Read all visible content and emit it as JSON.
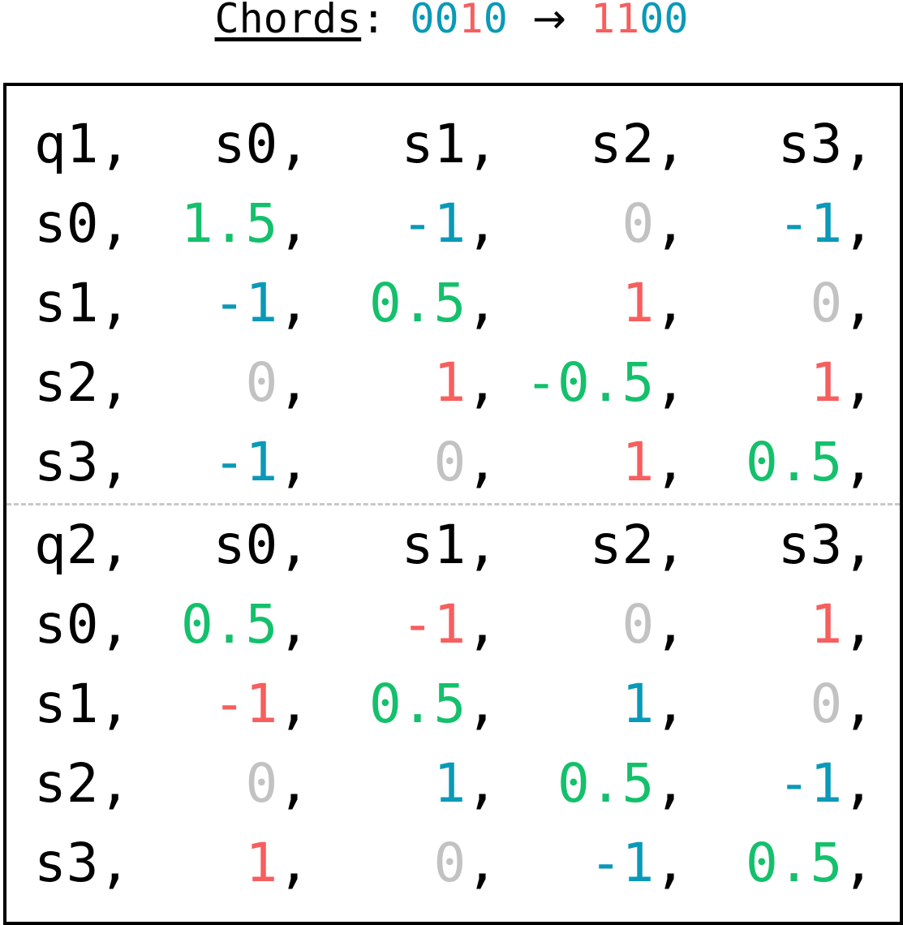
{
  "title": {
    "label": "Chords",
    "separator": ":",
    "from_bits": [
      {
        "char": "0",
        "color": "blue"
      },
      {
        "char": "0",
        "color": "blue"
      },
      {
        "char": "1",
        "color": "red"
      },
      {
        "char": "0",
        "color": "blue"
      }
    ],
    "arrow": "→",
    "to_bits": [
      {
        "char": "1",
        "color": "red"
      },
      {
        "char": "1",
        "color": "red"
      },
      {
        "char": "0",
        "color": "blue"
      },
      {
        "char": "0",
        "color": "blue"
      }
    ]
  },
  "colors": {
    "blue": "#0a99b8",
    "red": "#f75e5e",
    "green": "#14c06b",
    "gray": "#c2c2c2",
    "black": "#000000"
  },
  "blocks": [
    {
      "header": [
        "q1",
        "s0",
        "s1",
        "s2",
        "s3"
      ],
      "rows": [
        {
          "label": "s0",
          "cells": [
            {
              "v": "1.5",
              "c": "green"
            },
            {
              "v": "-1",
              "c": "blue"
            },
            {
              "v": "0",
              "c": "gray"
            },
            {
              "v": "-1",
              "c": "blue"
            }
          ]
        },
        {
          "label": "s1",
          "cells": [
            {
              "v": "-1",
              "c": "blue"
            },
            {
              "v": "0.5",
              "c": "green"
            },
            {
              "v": "1",
              "c": "red"
            },
            {
              "v": "0",
              "c": "gray"
            }
          ]
        },
        {
          "label": "s2",
          "cells": [
            {
              "v": "0",
              "c": "gray"
            },
            {
              "v": "1",
              "c": "red"
            },
            {
              "v": "-0.5",
              "c": "green"
            },
            {
              "v": "1",
              "c": "red"
            }
          ]
        },
        {
          "label": "s3",
          "cells": [
            {
              "v": "-1",
              "c": "blue"
            },
            {
              "v": "0",
              "c": "gray"
            },
            {
              "v": "1",
              "c": "red"
            },
            {
              "v": "0.5",
              "c": "green"
            }
          ]
        }
      ]
    },
    {
      "header": [
        "q2",
        "s0",
        "s1",
        "s2",
        "s3"
      ],
      "rows": [
        {
          "label": "s0",
          "cells": [
            {
              "v": "0.5",
              "c": "green"
            },
            {
              "v": "-1",
              "c": "red"
            },
            {
              "v": "0",
              "c": "gray"
            },
            {
              "v": "1",
              "c": "red"
            }
          ]
        },
        {
          "label": "s1",
          "cells": [
            {
              "v": "-1",
              "c": "red"
            },
            {
              "v": "0.5",
              "c": "green"
            },
            {
              "v": "1",
              "c": "blue"
            },
            {
              "v": "0",
              "c": "gray"
            }
          ]
        },
        {
          "label": "s2",
          "cells": [
            {
              "v": "0",
              "c": "gray"
            },
            {
              "v": "1",
              "c": "blue"
            },
            {
              "v": "0.5",
              "c": "green"
            },
            {
              "v": "-1",
              "c": "blue"
            }
          ]
        },
        {
          "label": "s3",
          "cells": [
            {
              "v": "1",
              "c": "red"
            },
            {
              "v": "0",
              "c": "gray"
            },
            {
              "v": "-1",
              "c": "blue"
            },
            {
              "v": "0.5",
              "c": "green"
            }
          ]
        }
      ]
    }
  ],
  "cell_suffix": ","
}
